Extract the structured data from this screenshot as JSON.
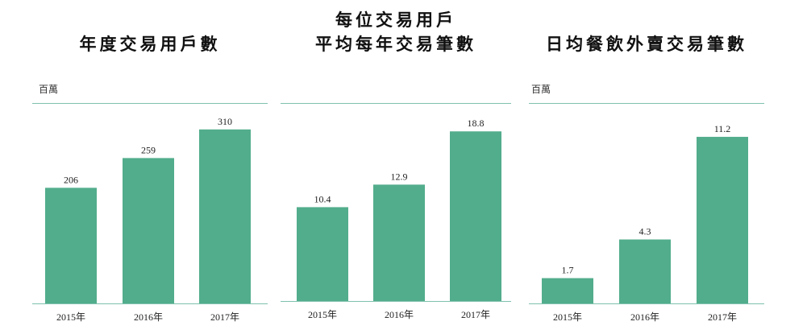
{
  "chart_data": [
    {
      "type": "bar",
      "title": "年度交易用戶數",
      "unit_label": "百萬",
      "categories": [
        "2015年",
        "2016年",
        "2017年"
      ],
      "values": [
        206,
        259,
        310
      ],
      "value_labels": [
        "206",
        "259",
        "310"
      ],
      "ylim": [
        0,
        380
      ],
      "bar_color": "#52ad8c",
      "rule_color": "#7fc1ad",
      "grid": false
    },
    {
      "type": "bar",
      "title": "每位交易用戶\n平均每年交易筆數",
      "unit_label": "",
      "categories": [
        "2015年",
        "2016年",
        "2017年"
      ],
      "values": [
        10.4,
        12.9,
        18.8
      ],
      "value_labels": [
        "10.4",
        "12.9",
        "18.8"
      ],
      "ylim": [
        0,
        22.3
      ],
      "bar_color": "#52ad8c",
      "rule_color": "#7fc1ad",
      "grid": false
    },
    {
      "type": "bar",
      "title": "日均餐飲外賣交易筆數",
      "unit_label": "百萬",
      "categories": [
        "2015年",
        "2016年",
        "2017年"
      ],
      "values": [
        1.7,
        4.3,
        11.2
      ],
      "value_labels": [
        "1.7",
        "4.3",
        "11.2"
      ],
      "ylim": [
        0,
        13.8
      ],
      "bar_color": "#52ad8c",
      "rule_color": "#7fc1ad",
      "grid": false
    }
  ]
}
